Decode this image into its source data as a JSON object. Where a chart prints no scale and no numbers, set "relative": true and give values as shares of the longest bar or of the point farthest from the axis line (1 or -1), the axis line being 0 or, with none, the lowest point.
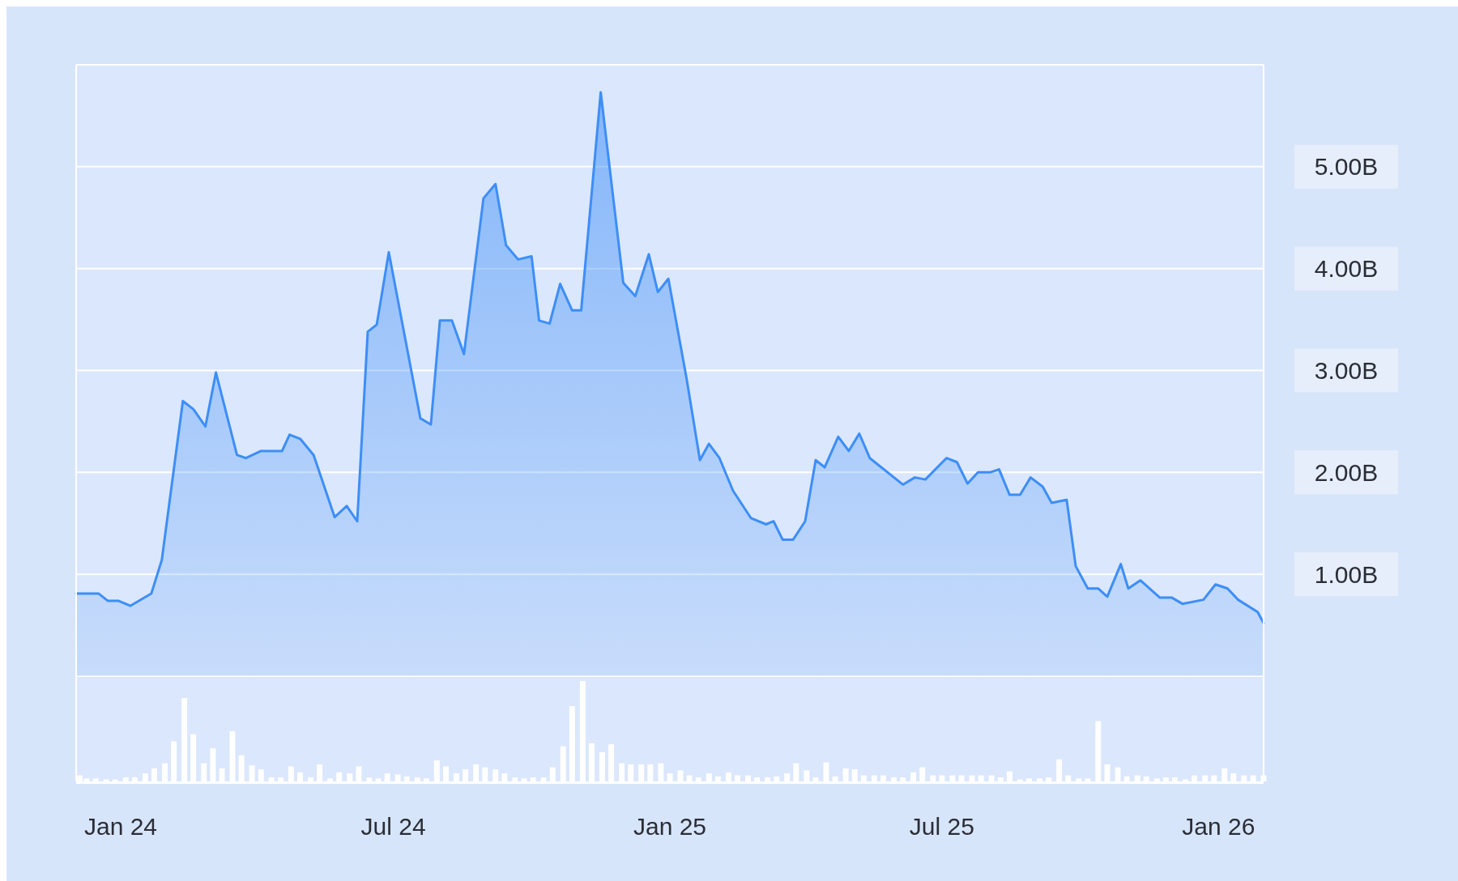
{
  "chart_data": [
    {
      "type": "area",
      "xlim": [
        "2023-12-03",
        "2026-01-31"
      ],
      "ylim": [
        0,
        6
      ],
      "yticks": [
        {
          "value": 0,
          "label": null
        },
        {
          "value": 1,
          "label": "1.00B"
        },
        {
          "value": 2,
          "label": "2.00B"
        },
        {
          "value": 3,
          "label": "3.00B"
        },
        {
          "value": 4,
          "label": "4.00B"
        },
        {
          "value": 5,
          "label": "5.00B"
        }
      ],
      "grid": "y",
      "tick_labels": "y",
      "x": [
        "2023-12-03",
        "2023-12-18",
        "2023-12-24",
        "2023-12-31",
        "2024-01-08",
        "2024-01-22",
        "2024-01-29",
        "2024-02-12",
        "2024-02-19",
        "2024-02-27",
        "2024-03-05",
        "2024-03-19",
        "2024-03-25",
        "2024-04-04",
        "2024-04-18",
        "2024-04-23",
        "2024-04-30",
        "2024-05-09",
        "2024-05-23",
        "2024-05-31",
        "2024-06-07",
        "2024-06-14",
        "2024-06-20",
        "2024-06-28",
        "2024-07-19",
        "2024-07-26",
        "2024-08-01",
        "2024-08-09",
        "2024-08-17",
        "2024-08-30",
        "2024-09-07",
        "2024-09-14",
        "2024-09-22",
        "2024-10-01",
        "2024-10-06",
        "2024-10-13",
        "2024-10-20",
        "2024-10-28",
        "2024-11-03",
        "2024-11-16",
        "2024-12-01",
        "2024-12-09",
        "2024-12-18",
        "2024-12-24",
        "2024-12-31",
        "2025-01-12",
        "2025-01-21",
        "2025-01-27",
        "2025-02-03",
        "2025-02-12",
        "2025-02-24",
        "2025-03-06",
        "2025-03-11",
        "2025-03-17",
        "2025-03-24",
        "2025-04-01",
        "2025-04-08",
        "2025-04-14",
        "2025-04-23",
        "2025-04-30",
        "2025-05-07",
        "2025-05-14",
        "2025-06-05",
        "2025-06-13",
        "2025-06-20",
        "2025-07-04",
        "2025-07-11",
        "2025-07-18",
        "2025-07-25",
        "2025-08-02",
        "2025-08-08",
        "2025-08-15",
        "2025-08-22",
        "2025-08-29",
        "2025-09-06",
        "2025-09-12",
        "2025-09-22",
        "2025-09-28",
        "2025-10-06",
        "2025-10-13",
        "2025-10-19",
        "2025-10-28",
        "2025-11-02",
        "2025-11-10",
        "2025-11-23",
        "2025-12-01",
        "2025-12-08",
        "2025-12-22",
        "2025-12-30",
        "2026-01-07",
        "2026-01-14",
        "2026-01-27",
        "2026-01-31"
      ],
      "series": [
        {
          "color": "#3d8ef7",
          "values": [
            0.81,
            0.81,
            0.74,
            0.74,
            0.69,
            0.81,
            1.14,
            2.7,
            2.62,
            2.45,
            2.98,
            2.17,
            2.14,
            2.21,
            2.21,
            2.37,
            2.33,
            2.17,
            1.56,
            1.67,
            1.52,
            3.38,
            3.45,
            4.16,
            2.53,
            2.47,
            3.49,
            3.49,
            3.16,
            4.69,
            4.83,
            4.23,
            4.09,
            4.12,
            3.49,
            3.46,
            3.85,
            3.59,
            3.59,
            5.73,
            3.86,
            3.73,
            4.14,
            3.77,
            3.9,
            2.93,
            2.12,
            2.28,
            2.14,
            1.82,
            1.55,
            1.49,
            1.52,
            1.34,
            1.34,
            1.52,
            2.12,
            2.05,
            2.35,
            2.21,
            2.38,
            2.14,
            1.88,
            1.95,
            1.93,
            2.14,
            2.1,
            1.89,
            2,
            2,
            2.03,
            1.78,
            1.78,
            1.95,
            1.86,
            1.7,
            1.73,
            1.08,
            0.86,
            0.86,
            0.78,
            1.1,
            0.86,
            0.94,
            0.77,
            0.77,
            0.71,
            0.75,
            0.9,
            0.86,
            0.75,
            0.63,
            0.52
          ]
        }
      ]
    },
    {
      "type": "bar",
      "relative": true,
      "xlim": [
        "2023-12-03",
        "2026-01-31"
      ],
      "xticks": [
        {
          "value": "2024-01-01",
          "label": "Jan 24"
        },
        {
          "value": "2024-07-01",
          "label": "Jul 24"
        },
        {
          "value": "2025-01-01",
          "label": "Jan 25"
        },
        {
          "value": "2025-07-01",
          "label": "Jul 25"
        },
        {
          "value": "2026-01-01",
          "label": "Jan 26"
        }
      ],
      "tick_labels": "x",
      "x": [
        "2023-12-03",
        "2023-12-10",
        "2023-12-16",
        "2023-12-23",
        "2023-12-29",
        "2024-01-05",
        "2024-01-11",
        "2024-01-18",
        "2024-01-24",
        "2024-01-31",
        "2024-02-06",
        "2024-02-13",
        "2024-02-19",
        "2024-02-26",
        "2024-03-03",
        "2024-03-09",
        "2024-03-16",
        "2024-03-22",
        "2024-03-29",
        "2024-04-04",
        "2024-04-11",
        "2024-04-17",
        "2024-04-24",
        "2024-04-30",
        "2024-05-07",
        "2024-05-13",
        "2024-05-20",
        "2024-05-26",
        "2024-06-02",
        "2024-06-08",
        "2024-06-15",
        "2024-06-21",
        "2024-06-27",
        "2024-07-04",
        "2024-07-10",
        "2024-07-17",
        "2024-07-23",
        "2024-07-30",
        "2024-08-05",
        "2024-08-12",
        "2024-08-18",
        "2024-08-25",
        "2024-08-31",
        "2024-09-07",
        "2024-09-13",
        "2024-09-20",
        "2024-09-26",
        "2024-10-02",
        "2024-10-09",
        "2024-10-15",
        "2024-10-22",
        "2024-10-28",
        "2024-11-04",
        "2024-11-10",
        "2024-11-17",
        "2024-11-23",
        "2024-11-30",
        "2024-12-06",
        "2024-12-13",
        "2024-12-19",
        "2024-12-26",
        "2025-01-01",
        "2025-01-08",
        "2025-01-14",
        "2025-01-20",
        "2025-01-27",
        "2025-02-02",
        "2025-02-09",
        "2025-02-15",
        "2025-02-22",
        "2025-02-28",
        "2025-03-07",
        "2025-03-13",
        "2025-03-20",
        "2025-03-26",
        "2025-04-02",
        "2025-04-08",
        "2025-04-15",
        "2025-04-21",
        "2025-04-28",
        "2025-05-04",
        "2025-05-10",
        "2025-05-17",
        "2025-05-23",
        "2025-05-30",
        "2025-06-05",
        "2025-06-12",
        "2025-06-18",
        "2025-06-25",
        "2025-07-01",
        "2025-07-08",
        "2025-07-14",
        "2025-07-21",
        "2025-07-27",
        "2025-08-03",
        "2025-08-09",
        "2025-08-15",
        "2025-08-22",
        "2025-08-28",
        "2025-09-04",
        "2025-09-10",
        "2025-09-17",
        "2025-09-23",
        "2025-09-30",
        "2025-10-06",
        "2025-10-13",
        "2025-10-19",
        "2025-10-26",
        "2025-11-01",
        "2025-11-08",
        "2025-11-14",
        "2025-11-21",
        "2025-11-27",
        "2025-12-03",
        "2025-12-10",
        "2025-12-16",
        "2025-12-23",
        "2025-12-29",
        "2026-01-05",
        "2026-01-11",
        "2026-01-18",
        "2026-01-24",
        "2026-01-31"
      ],
      "series": [
        {
          "color": "#ffffff",
          "values": [
            0.06,
            0.03,
            0.03,
            0.02,
            0.02,
            0.04,
            0.04,
            0.08,
            0.13,
            0.18,
            0.4,
            0.83,
            0.47,
            0.18,
            0.33,
            0.13,
            0.5,
            0.26,
            0.16,
            0.12,
            0.04,
            0.04,
            0.15,
            0.09,
            0.04,
            0.17,
            0.03,
            0.09,
            0.08,
            0.15,
            0.04,
            0.03,
            0.08,
            0.07,
            0.05,
            0.04,
            0.03,
            0.21,
            0.15,
            0.08,
            0.12,
            0.17,
            0.14,
            0.12,
            0.08,
            0.04,
            0.03,
            0.04,
            0.04,
            0.14,
            0.35,
            0.75,
            1,
            0.38,
            0.29,
            0.37,
            0.18,
            0.17,
            0.17,
            0.17,
            0.18,
            0.08,
            0.11,
            0.06,
            0.04,
            0.08,
            0.05,
            0.09,
            0.06,
            0.06,
            0.04,
            0.04,
            0.05,
            0.08,
            0.18,
            0.11,
            0.04,
            0.19,
            0.05,
            0.13,
            0.12,
            0.06,
            0.06,
            0.06,
            0.04,
            0.04,
            0.09,
            0.14,
            0.06,
            0.06,
            0.06,
            0.06,
            0.06,
            0.06,
            0.06,
            0.04,
            0.1,
            0.02,
            0.03,
            0.03,
            0.04,
            0.22,
            0.06,
            0.03,
            0.03,
            0.6,
            0.17,
            0.14,
            0.05,
            0.06,
            0.05,
            0.03,
            0.04,
            0.04,
            0.02,
            0.06,
            0.06,
            0.06,
            0.13,
            0.08,
            0.06,
            0.06,
            0.06
          ]
        }
      ]
    }
  ]
}
